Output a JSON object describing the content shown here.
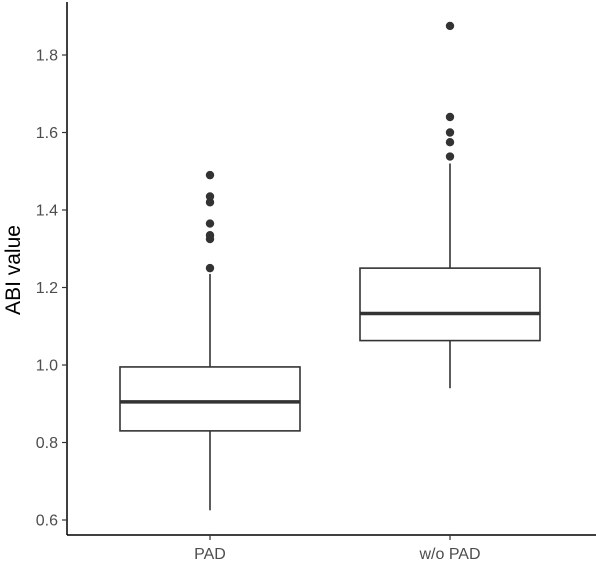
{
  "chart_data": {
    "type": "box",
    "title": "",
    "xlabel": "",
    "ylabel": "ABI value",
    "ylim": [
      0.58,
      1.93
    ],
    "yticks": [
      0.6,
      0.8,
      1.0,
      1.2,
      1.4,
      1.6,
      1.8
    ],
    "ytick_labels": [
      "0.6",
      "0.8",
      "1.0",
      "1.2",
      "1.4",
      "1.6",
      "1.8"
    ],
    "grid": false,
    "categories": [
      "PAD",
      "w/o PAD"
    ],
    "boxes": [
      {
        "category": "PAD",
        "whisker_low": 0.625,
        "q1": 0.83,
        "median": 0.905,
        "q3": 0.995,
        "whisker_high": 1.235,
        "outliers": [
          1.25,
          1.325,
          1.335,
          1.365,
          1.42,
          1.435,
          1.49
        ]
      },
      {
        "category": "w/o PAD",
        "whisker_low": 0.94,
        "q1": 1.063,
        "median": 1.133,
        "q3": 1.25,
        "whisker_high": 1.52,
        "outliers": [
          1.538,
          1.575,
          1.6,
          1.64,
          1.875
        ]
      }
    ],
    "colors": {
      "box_stroke": "#333333",
      "fill": "#ffffff",
      "axis": "#000000",
      "tick_text": "#4d4d4d"
    }
  }
}
